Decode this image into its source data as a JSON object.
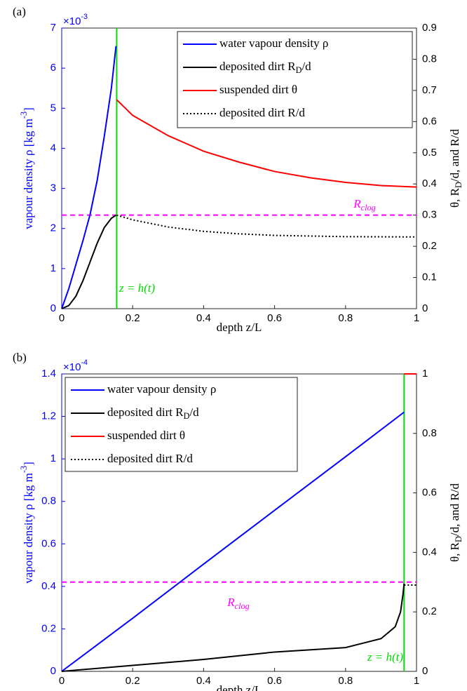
{
  "chart_data": [
    {
      "type": "line",
      "label": "(a)",
      "xlabel": "depth z/L",
      "ylabel": "vapour density ρ [kg m^{-3}]",
      "y2label": "θ, R_D/d, and R/d",
      "multiplier": "×10^{-3}",
      "xlim": [
        0,
        1
      ],
      "xticks": [
        0,
        0.2,
        0.4,
        0.6,
        0.8,
        1
      ],
      "ylim": [
        0,
        7
      ],
      "yticks": [
        0,
        1,
        2,
        3,
        4,
        5,
        6,
        7
      ],
      "y_color": "#0000ff",
      "y2lim": [
        0,
        0.9
      ],
      "y2ticks": [
        0,
        0.1,
        0.2,
        0.3,
        0.4,
        0.5,
        0.6,
        0.7,
        0.8,
        0.9
      ],
      "legend": "upper right",
      "series": [
        {
          "name": "water vapour density ρ",
          "color": "#0000ff",
          "axis": "y",
          "x": [
            0,
            0.02,
            0.04,
            0.06,
            0.08,
            0.1,
            0.12,
            0.14,
            0.153
          ],
          "values": [
            0,
            0.5,
            1.1,
            1.7,
            2.35,
            3.2,
            4.3,
            5.5,
            6.55
          ]
        },
        {
          "name": "deposited dirt R_D/d",
          "color": "#000000",
          "axis": "y2",
          "x": [
            0,
            0.02,
            0.04,
            0.06,
            0.08,
            0.1,
            0.12,
            0.14,
            0.153
          ],
          "values": [
            0,
            0.01,
            0.04,
            0.09,
            0.15,
            0.21,
            0.26,
            0.29,
            0.3
          ]
        },
        {
          "name": "suspended dirt θ",
          "color": "#ff0000",
          "axis": "y2",
          "x": [
            0.155,
            0.2,
            0.3,
            0.4,
            0.5,
            0.6,
            0.7,
            0.8,
            0.9,
            1
          ],
          "values": [
            0.67,
            0.62,
            0.555,
            0.505,
            0.47,
            0.44,
            0.42,
            0.405,
            0.395,
            0.39
          ]
        },
        {
          "name": "deposited dirt R/d",
          "color": "#000000",
          "dash": "dotted",
          "axis": "y2",
          "x": [
            0.155,
            0.2,
            0.3,
            0.4,
            0.5,
            0.6,
            0.8,
            1
          ],
          "values": [
            0.3,
            0.285,
            0.262,
            0.248,
            0.24,
            0.235,
            0.231,
            0.23
          ]
        }
      ],
      "reference_lines": [
        {
          "axis": "y2",
          "value": 0.3,
          "label": "R_{clog}",
          "color": "#ff00ff",
          "dash": "dashed"
        },
        {
          "axis": "x",
          "value": 0.155,
          "label": "z = h(t)",
          "color": "#00dd00"
        }
      ]
    },
    {
      "type": "line",
      "label": "(b)",
      "xlabel": "depth z/L",
      "ylabel": "vapour density ρ [kg m^{-3}]",
      "y2label": "θ, R_D/d, and R/d",
      "multiplier": "×10^{-4}",
      "xlim": [
        0,
        1
      ],
      "xticks": [
        0,
        0.2,
        0.4,
        0.6,
        0.8,
        1
      ],
      "ylim": [
        0,
        1.4
      ],
      "yticks": [
        0,
        0.2,
        0.4,
        0.6,
        0.8,
        1,
        1.2,
        1.4
      ],
      "y_color": "#0000ff",
      "y2lim": [
        0,
        1
      ],
      "y2ticks": [
        0,
        0.2,
        0.4,
        0.6,
        0.8,
        1
      ],
      "legend": "upper left",
      "series": [
        {
          "name": "water vapour density ρ",
          "color": "#0000ff",
          "axis": "y",
          "x": [
            0,
            0.2,
            0.4,
            0.6,
            0.8,
            0.965
          ],
          "values": [
            0,
            0.25,
            0.505,
            0.758,
            1.01,
            1.22
          ]
        },
        {
          "name": "deposited dirt R_D/d",
          "color": "#000000",
          "axis": "y2",
          "x": [
            0,
            0.2,
            0.4,
            0.6,
            0.8,
            0.9,
            0.94,
            0.955,
            0.962,
            0.965
          ],
          "values": [
            0,
            0.02,
            0.04,
            0.065,
            0.08,
            0.11,
            0.15,
            0.2,
            0.26,
            0.295
          ]
        },
        {
          "name": "suspended dirt θ",
          "color": "#ff0000",
          "axis": "y2",
          "x": [
            0.965,
            1
          ],
          "values": [
            1,
            1
          ]
        },
        {
          "name": "deposited dirt R/d",
          "color": "#000000",
          "dash": "dotted",
          "axis": "y2",
          "x": [
            0.965,
            1
          ],
          "values": [
            0.29,
            0.29
          ]
        }
      ],
      "reference_lines": [
        {
          "axis": "y2",
          "value": 0.3,
          "label": "R_{clog}",
          "color": "#ff00ff",
          "dash": "dashed"
        },
        {
          "axis": "x",
          "value": 0.965,
          "label": "z = h(t)",
          "color": "#00dd00"
        }
      ]
    }
  ]
}
